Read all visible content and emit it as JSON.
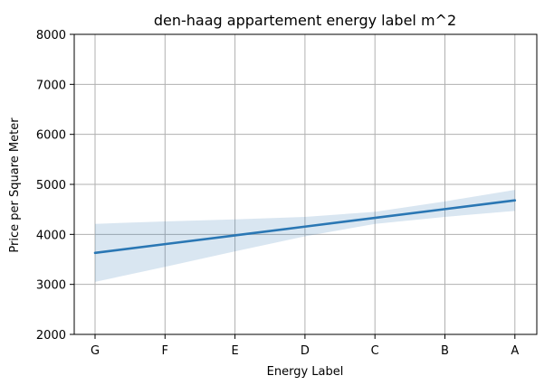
{
  "chart_data": {
    "type": "line",
    "title": "den-haag appartement energy label m^2",
    "xlabel": "Energy Label",
    "ylabel": "Price per Square Meter",
    "categories": [
      "G",
      "F",
      "E",
      "D",
      "C",
      "B",
      "A"
    ],
    "yticks": [
      2000,
      3000,
      4000,
      5000,
      6000,
      7000,
      8000
    ],
    "ylim": [
      2000,
      8000
    ],
    "grid": true,
    "series": [
      {
        "values": [
          3630,
          3805,
          3980,
          4155,
          4330,
          4505,
          4680
        ],
        "ci_lower": [
          3050,
          3350,
          3660,
          3960,
          4210,
          4350,
          4470
        ],
        "ci_upper": [
          4210,
          4260,
          4300,
          4350,
          4450,
          4660,
          4890
        ],
        "color": "#2a77b4",
        "band_color": "#2a77b4"
      }
    ]
  }
}
